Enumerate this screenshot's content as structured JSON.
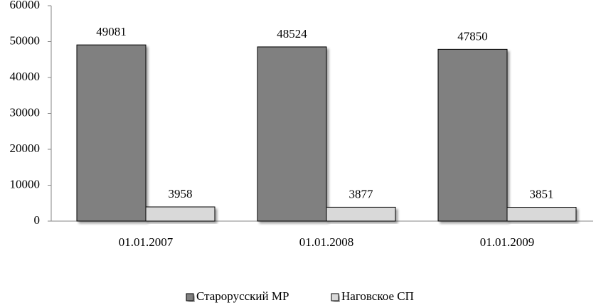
{
  "chart_data": {
    "type": "bar",
    "categories": [
      "01.01.2007",
      "01.01.2008",
      "01.01.2009"
    ],
    "series": [
      {
        "name": "Старорусский МР",
        "color": "#808080",
        "values": [
          49081,
          48524,
          47850
        ]
      },
      {
        "name": "Наговское СП",
        "color": "#d9d9d9",
        "values": [
          3958,
          3877,
          3851
        ]
      }
    ],
    "ylim": [
      0,
      60000
    ],
    "yticks": [
      0,
      10000,
      20000,
      30000,
      40000,
      50000,
      60000
    ],
    "grid": false,
    "legend": "bottom"
  }
}
